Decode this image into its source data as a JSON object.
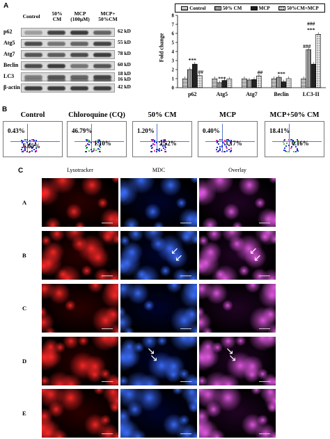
{
  "panels": {
    "a": "A",
    "b": "B",
    "c": "C"
  },
  "western_blot": {
    "columns": [
      "Control",
      "50%\nCM",
      "MCP\n(100μM)",
      "MCP+\n50%CM"
    ],
    "rows": [
      {
        "protein": "p62",
        "kd": "62 kD"
      },
      {
        "protein": "Atg5",
        "kd": "55 kD"
      },
      {
        "protein": "Atg7",
        "kd": "78 kD"
      },
      {
        "protein": "Beclin",
        "kd": "60 kD"
      },
      {
        "protein": "LC3",
        "kd": "18 kD\n16 kD"
      },
      {
        "protein": "β-actin",
        "kd": "42 kD"
      }
    ]
  },
  "chart_data": {
    "type": "bar",
    "ylabel": "Fold change",
    "ylim": [
      0,
      8
    ],
    "yticks": [
      "0",
      "1",
      "2",
      "3",
      "4",
      "5",
      "6",
      "7",
      "8"
    ],
    "categories": [
      "p62",
      "Atg5",
      "Atg7",
      "Beclin",
      "LC3-II"
    ],
    "series": [
      {
        "name": "Control",
        "values": [
          1.0,
          1.0,
          1.0,
          1.0,
          1.0
        ]
      },
      {
        "name": "50% CM",
        "values": [
          2.0,
          0.55,
          0.85,
          1.15,
          4.2
        ]
      },
      {
        "name": "MCP",
        "values": [
          2.6,
          0.8,
          0.9,
          0.65,
          2.6
        ]
      },
      {
        "name": "50%CM+MCP",
        "values": [
          1.35,
          0.95,
          1.3,
          1.0,
          5.9
        ]
      }
    ],
    "annotations": [
      {
        "text": "***",
        "category": "p62",
        "y": 2.85
      },
      {
        "text": "##",
        "category": "p62",
        "y": 1.55
      },
      {
        "text": "***",
        "category": "Atg5",
        "y": 0.8
      },
      {
        "text": "##",
        "category": "Atg7",
        "y": 1.5
      },
      {
        "text": "***",
        "category": "Beclin",
        "y": 1.35
      },
      {
        "text": "###",
        "category": "LC3-II",
        "y": 4.4
      },
      {
        "text": "###",
        "category": "LC3-II",
        "y": 6.9
      },
      {
        "text": "***",
        "category": "LC3-II",
        "y": 6.2
      }
    ],
    "legend_position": "top"
  },
  "flow": {
    "plots": [
      {
        "title": "Control",
        "upper": "0.43%",
        "lower": "6.05%"
      },
      {
        "title": "Chloroquine (CQ)",
        "upper": "46.79%",
        "lower": "1.10%"
      },
      {
        "title": "50% CM",
        "upper": "1.20%",
        "lower": "2.52%"
      },
      {
        "title": "MCP",
        "upper": "0.40%",
        "lower": "3.17%"
      },
      {
        "title": "MCP+50% CM",
        "upper": "18.41%",
        "lower": "0.16%"
      }
    ]
  },
  "microscopy": {
    "columns": [
      "Lysotracker",
      "MDC",
      "Overlay"
    ],
    "rows": [
      "A",
      "B",
      "C",
      "D",
      "E"
    ]
  },
  "colors": {
    "control": "#ffffff",
    "cm": "#b8b8b8",
    "mcp": "#333333",
    "red": "#d11",
    "blue": "#2255ff",
    "magenta": "#d04ccf"
  }
}
